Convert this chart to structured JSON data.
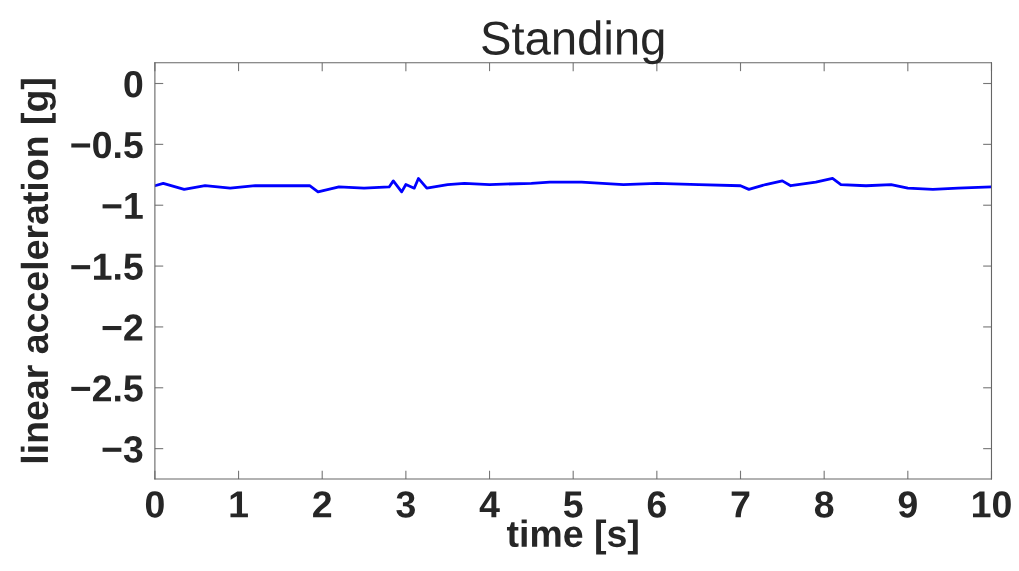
{
  "chart_data": {
    "type": "line",
    "title": "Standing",
    "xlabel": "time [s]",
    "ylabel": "linear acceleration [g]",
    "xlim": [
      0,
      10
    ],
    "xticks": [
      0,
      1,
      2,
      3,
      4,
      5,
      6,
      7,
      8,
      9,
      10
    ],
    "ylim": [
      -3.25,
      0.17
    ],
    "yticks": [
      0,
      {
        "value": -0.5,
        "label": "−0.5"
      },
      {
        "value": -1,
        "label": "−1"
      },
      {
        "value": -1.5,
        "label": "−1.5"
      },
      {
        "value": -2,
        "label": "−2"
      },
      {
        "value": -2.5,
        "label": "−2.5"
      },
      {
        "value": -3,
        "label": "−3"
      }
    ],
    "grid": false,
    "line_style": "solid",
    "marker": "none",
    "series": [
      {
        "color": "#0000ff",
        "x": [
          0,
          0.1,
          0.35,
          0.6,
          0.9,
          1.2,
          1.6,
          1.85,
          1.95,
          2.2,
          2.5,
          2.8,
          2.85,
          2.95,
          3.0,
          3.1,
          3.15,
          3.25,
          3.5,
          3.7,
          4.0,
          4.5,
          4.72,
          5.1,
          5.6,
          6.0,
          6.5,
          7.0,
          7.1,
          7.3,
          7.5,
          7.6,
          7.9,
          8.1,
          8.2,
          8.5,
          8.8,
          9.0,
          9.3,
          9.6,
          10
        ],
        "values": [
          -0.84,
          -0.82,
          -0.87,
          -0.84,
          -0.86,
          -0.84,
          -0.84,
          -0.84,
          -0.89,
          -0.85,
          -0.86,
          -0.85,
          -0.8,
          -0.89,
          -0.83,
          -0.86,
          -0.78,
          -0.86,
          -0.83,
          -0.82,
          -0.83,
          -0.82,
          -0.81,
          -0.81,
          -0.83,
          -0.82,
          -0.83,
          -0.84,
          -0.87,
          -0.83,
          -0.8,
          -0.84,
          -0.81,
          -0.78,
          -0.83,
          -0.84,
          -0.83,
          -0.86,
          -0.87,
          -0.86,
          -0.85
        ]
      }
    ]
  }
}
